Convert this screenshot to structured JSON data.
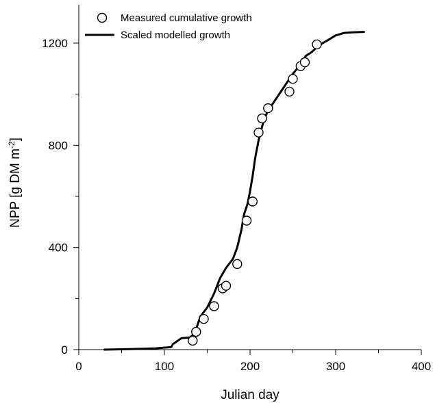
{
  "chart_data": {
    "type": "line",
    "xlabel": "Julian day",
    "ylabel_main": "NPP [g DM m",
    "ylabel_sup": "-2",
    "ylabel_tail": "]",
    "xlim": [
      0,
      400
    ],
    "ylim": [
      0,
      1350
    ],
    "x_ticks": [
      0,
      100,
      200,
      300,
      400
    ],
    "x_minor_ticks": [
      50,
      150,
      250,
      350
    ],
    "y_ticks": [
      0,
      400,
      800,
      1200
    ],
    "y_minor_ticks": [
      200,
      600,
      1000
    ],
    "grid": false,
    "legend_position": "top-left",
    "series": [
      {
        "name": "Measured cumulative growth",
        "kind": "scatter",
        "marker": "open-circle",
        "x": [
          133,
          137,
          146,
          158,
          168,
          172,
          185,
          196,
          203,
          210,
          214,
          221,
          246,
          250,
          259,
          264,
          278
        ],
        "y": [
          35,
          70,
          120,
          170,
          240,
          250,
          335,
          505,
          580,
          850,
          905,
          945,
          1010,
          1060,
          1110,
          1125,
          1195
        ]
      },
      {
        "name": "Scaled modelled growth",
        "kind": "line",
        "color": "#000000",
        "x": [
          30,
          60,
          90,
          108,
          110,
          120,
          130,
          134,
          138,
          142,
          150,
          158,
          165,
          172,
          180,
          185,
          190,
          193,
          197,
          200,
          203,
          206,
          210,
          215,
          220,
          230,
          240,
          250,
          260,
          265,
          272,
          280,
          290,
          300,
          310,
          320,
          333
        ],
        "y": [
          0,
          2,
          5,
          10,
          22,
          45,
          48,
          60,
          90,
          130,
          165,
          220,
          280,
          320,
          355,
          400,
          470,
          530,
          570,
          620,
          680,
          750,
          820,
          885,
          930,
          980,
          1030,
          1080,
          1120,
          1150,
          1165,
          1190,
          1210,
          1230,
          1240,
          1242,
          1244
        ]
      }
    ]
  }
}
